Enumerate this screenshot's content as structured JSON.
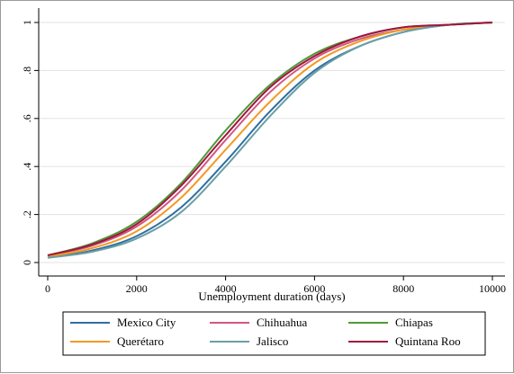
{
  "chart_data": {
    "type": "line",
    "title": "",
    "xlabel": "Unemployment duration (days)",
    "ylabel": "",
    "xlim": [
      0,
      10000
    ],
    "ylim": [
      0,
      1
    ],
    "x_ticks": [
      0,
      2000,
      4000,
      6000,
      8000,
      10000
    ],
    "x_tick_labels": [
      "0",
      "2000",
      "4000",
      "6000",
      "8000",
      "10000"
    ],
    "y_ticks": [
      0,
      0.2,
      0.4,
      0.6,
      0.8,
      1
    ],
    "y_tick_labels": [
      "0",
      ".2",
      ".4",
      ".6",
      ".8",
      "1"
    ],
    "grid": "horizontal",
    "legend_position": "bottom",
    "x": [
      0,
      1000,
      2000,
      3000,
      4000,
      5000,
      6000,
      7000,
      8000,
      9000,
      10000
    ],
    "series": [
      {
        "name": "Mexico City",
        "color": "#2f6f9f",
        "values": [
          0.02,
          0.05,
          0.11,
          0.23,
          0.42,
          0.63,
          0.8,
          0.9,
          0.96,
          0.99,
          1.0
        ]
      },
      {
        "name": "Chihuahua",
        "color": "#d3577f",
        "values": [
          0.03,
          0.07,
          0.15,
          0.3,
          0.51,
          0.71,
          0.85,
          0.93,
          0.97,
          0.99,
          1.0
        ]
      },
      {
        "name": "Chiapas",
        "color": "#4f9a3a",
        "values": [
          0.03,
          0.08,
          0.17,
          0.33,
          0.55,
          0.74,
          0.87,
          0.94,
          0.98,
          0.99,
          1.0
        ]
      },
      {
        "name": "Querétaro",
        "color": "#f29a24",
        "values": [
          0.025,
          0.06,
          0.13,
          0.27,
          0.47,
          0.67,
          0.83,
          0.92,
          0.97,
          0.99,
          1.0
        ]
      },
      {
        "name": "Jalisco",
        "color": "#6a9fa6",
        "values": [
          0.02,
          0.045,
          0.1,
          0.21,
          0.4,
          0.61,
          0.79,
          0.9,
          0.96,
          0.99,
          1.0
        ]
      },
      {
        "name": "Quintana Roo",
        "color": "#a0153e",
        "values": [
          0.03,
          0.075,
          0.16,
          0.32,
          0.53,
          0.73,
          0.86,
          0.94,
          0.98,
          0.99,
          1.0
        ]
      }
    ]
  }
}
